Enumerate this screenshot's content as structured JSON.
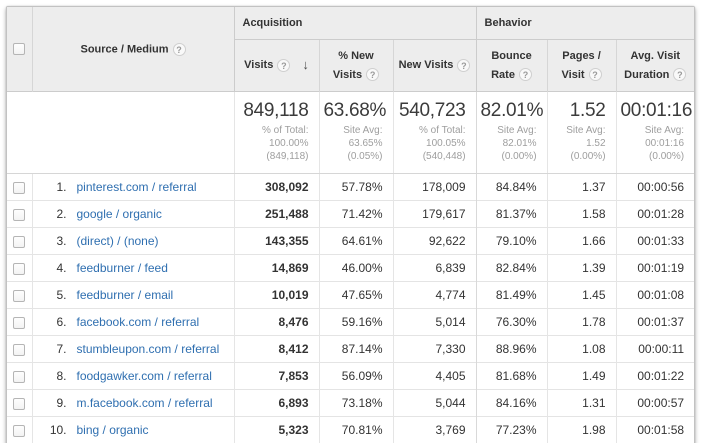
{
  "colors": {
    "header_bg": "#ededed",
    "link_blue": "#2f6fb0",
    "subtext_gray": "#9e9e9e",
    "border_gray": "#cccccc"
  },
  "icons": {
    "help": "?",
    "sort_desc": "↓"
  },
  "table": {
    "groups": {
      "acquisition": "Acquisition",
      "behavior": "Behavior"
    },
    "columns": {
      "source_medium": "Source / Medium",
      "visits": "Visits",
      "pct_new_visits": "% New Visits",
      "new_visits": "New Visits",
      "bounce_rate": "Bounce Rate",
      "pages_visit": "Pages / Visit",
      "avg_duration": "Avg. Visit Duration"
    },
    "summary": {
      "visits": {
        "value": "849,118",
        "sub": "% of Total:\n100.00%\n(849,118)"
      },
      "pct_new_visits": {
        "value": "63.68%",
        "sub": "Site Avg:\n63.65%\n(0.05%)"
      },
      "new_visits": {
        "value": "540,723",
        "sub": "% of Total:\n100.05%\n(540,448)"
      },
      "bounce_rate": {
        "value": "82.01%",
        "sub": "Site Avg:\n82.01%\n(0.00%)"
      },
      "pages_visit": {
        "value": "1.52",
        "sub": "Site Avg:\n1.52 (0.00%)"
      },
      "avg_duration": {
        "value": "00:01:16",
        "sub": "Site Avg:\n00:01:16\n(0.00%)"
      }
    },
    "rows": [
      {
        "rank": "1.",
        "source": "pinterest.com / referral",
        "visits": "308,092",
        "pct_new": "57.78%",
        "new_visits": "178,009",
        "bounce": "84.84%",
        "pages": "1.37",
        "duration": "00:00:56"
      },
      {
        "rank": "2.",
        "source": "google / organic",
        "visits": "251,488",
        "pct_new": "71.42%",
        "new_visits": "179,617",
        "bounce": "81.37%",
        "pages": "1.58",
        "duration": "00:01:28"
      },
      {
        "rank": "3.",
        "source": "(direct) / (none)",
        "visits": "143,355",
        "pct_new": "64.61%",
        "new_visits": "92,622",
        "bounce": "79.10%",
        "pages": "1.66",
        "duration": "00:01:33"
      },
      {
        "rank": "4.",
        "source": "feedburner / feed",
        "visits": "14,869",
        "pct_new": "46.00%",
        "new_visits": "6,839",
        "bounce": "82.84%",
        "pages": "1.39",
        "duration": "00:01:19"
      },
      {
        "rank": "5.",
        "source": "feedburner / email",
        "visits": "10,019",
        "pct_new": "47.65%",
        "new_visits": "4,774",
        "bounce": "81.49%",
        "pages": "1.45",
        "duration": "00:01:08"
      },
      {
        "rank": "6.",
        "source": "facebook.com / referral",
        "visits": "8,476",
        "pct_new": "59.16%",
        "new_visits": "5,014",
        "bounce": "76.30%",
        "pages": "1.78",
        "duration": "00:01:37"
      },
      {
        "rank": "7.",
        "source": "stumbleupon.com / referral",
        "visits": "8,412",
        "pct_new": "87.14%",
        "new_visits": "7,330",
        "bounce": "88.96%",
        "pages": "1.08",
        "duration": "00:00:11"
      },
      {
        "rank": "8.",
        "source": "foodgawker.com / referral",
        "visits": "7,853",
        "pct_new": "56.09%",
        "new_visits": "4,405",
        "bounce": "81.68%",
        "pages": "1.49",
        "duration": "00:01:22"
      },
      {
        "rank": "9.",
        "source": "m.facebook.com / referral",
        "visits": "6,893",
        "pct_new": "73.18%",
        "new_visits": "5,044",
        "bounce": "84.16%",
        "pages": "1.31",
        "duration": "00:00:57"
      },
      {
        "rank": "10.",
        "source": "bing / organic",
        "visits": "5,323",
        "pct_new": "70.81%",
        "new_visits": "3,769",
        "bounce": "77.23%",
        "pages": "1.98",
        "duration": "00:01:58"
      }
    ]
  }
}
